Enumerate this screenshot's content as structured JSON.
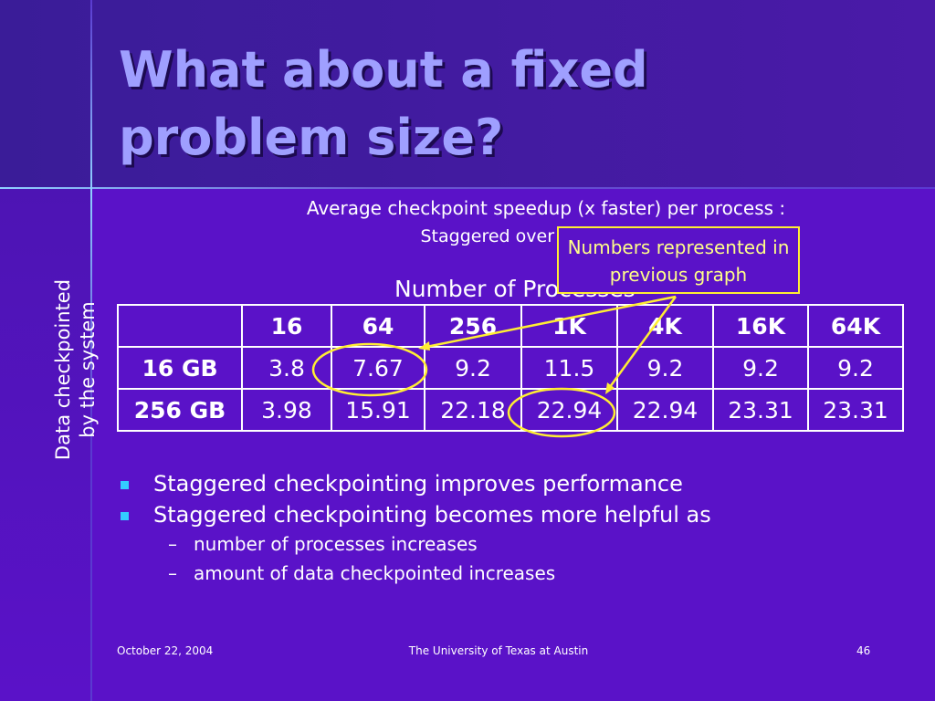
{
  "header": {
    "title": "What about a fixed problem size?"
  },
  "subtitle": {
    "line1": "Average checkpoint speedup (x faster) per process :",
    "line2": "Staggered over Synchronous"
  },
  "callout": "Numbers represented in previous graph",
  "column_label": "Number of Processes",
  "row_label": {
    "line1": "Data checkpointed",
    "line2": "by the system"
  },
  "table": {
    "columns": [
      "16",
      "64",
      "256",
      "1K",
      "4K",
      "16K",
      "64K"
    ],
    "rows": [
      {
        "label": "16 GB",
        "cells": [
          3.8,
          7.67,
          9.2,
          11.5,
          9.2,
          9.2,
          9.2
        ]
      },
      {
        "label": "256 GB",
        "cells": [
          3.98,
          15.91,
          22.18,
          22.94,
          22.94,
          23.31,
          23.31
        ]
      }
    ]
  },
  "bullets": [
    {
      "text": "Staggered checkpointing improves performance",
      "sub": []
    },
    {
      "text": "Staggered checkpointing becomes more helpful as",
      "sub": [
        "number of processes increases",
        "amount of data checkpointed increases"
      ]
    }
  ],
  "footer": {
    "date": "October 22, 2004",
    "org": "The University of Texas at Austin",
    "page": "46"
  }
}
